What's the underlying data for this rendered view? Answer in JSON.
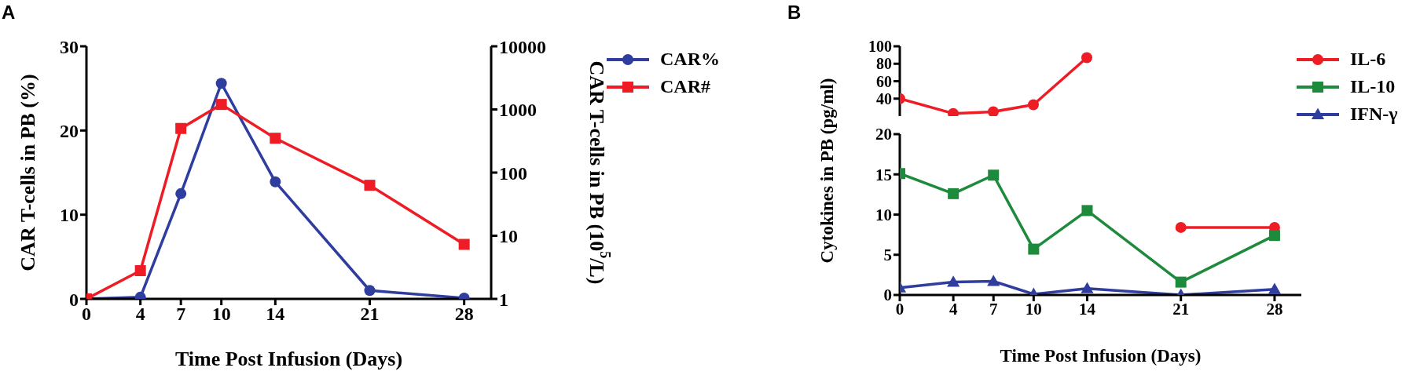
{
  "chart_data": [
    {
      "type": "line",
      "title": "A",
      "xlabel": "Time Post Infusion (Days)",
      "ylabel": "CAR T-cells in PB (%)",
      "y2label": "CAR T-cells in PB (10$^{5}$/L)",
      "x": [
        0,
        4,
        7,
        10,
        14,
        21,
        28
      ],
      "xlim": [
        0,
        30
      ],
      "xticks": [
        0,
        4,
        7,
        10,
        14,
        21,
        28
      ],
      "ylim": [
        0,
        30
      ],
      "yticks": [
        0,
        10,
        20,
        30
      ],
      "y2lim": [
        1,
        10000
      ],
      "y2ticks": [
        1,
        10,
        100,
        1000,
        10000
      ],
      "log": "y2",
      "legend": "top right",
      "series": [
        {
          "name": "CAR%",
          "color": "#2e3d9e",
          "marker": "circle",
          "values": [
            0,
            0.2,
            12.5,
            25.6,
            13.9,
            1.0,
            0.1
          ]
        },
        {
          "name": "CAR#",
          "color": "#ee1c25",
          "marker": "square",
          "axis": "y2",
          "values": [
            1,
            2.8,
            500,
            1200,
            350,
            63,
            7.3
          ]
        }
      ]
    },
    {
      "type": "line",
      "title": "B",
      "x": [
        0,
        4,
        7,
        10,
        14,
        21,
        28
      ],
      "ylim": [
        20,
        100
      ],
      "yticks": [
        40,
        60,
        80,
        100
      ],
      "tick_labels": "y",
      "series": [
        {
          "color": "#ee1c25",
          "marker": "circle",
          "values": [
            40,
            23,
            25,
            33,
            87,
            null,
            null
          ]
        }
      ]
    },
    {
      "type": "line",
      "xlabel": "Time Post Infusion (Days)",
      "ylabel": "Cytokines in PB (pg/ml)",
      "x": [
        0,
        4,
        7,
        10,
        14,
        21,
        28
      ],
      "xlim": [
        0,
        30
      ],
      "xticks": [
        0,
        4,
        7,
        10,
        14,
        21,
        28
      ],
      "ylim": [
        0,
        20
      ],
      "yticks": [
        0,
        5,
        10,
        15,
        20
      ],
      "legend": "top right",
      "series": [
        {
          "name": "IL-6",
          "color": "#ee1c25",
          "marker": "circle",
          "values": [
            null,
            null,
            null,
            null,
            null,
            8.4,
            8.4
          ]
        },
        {
          "name": "IL-10",
          "color": "#1e8a3c",
          "marker": "square",
          "values": [
            15.1,
            12.6,
            14.9,
            5.7,
            10.5,
            1.6,
            7.4
          ]
        },
        {
          "name": "IFN-γ",
          "color": "#2e3d9e",
          "marker": "triangle",
          "values": [
            0.9,
            1.6,
            1.7,
            0.1,
            0.8,
            0,
            0.7
          ]
        }
      ]
    }
  ]
}
